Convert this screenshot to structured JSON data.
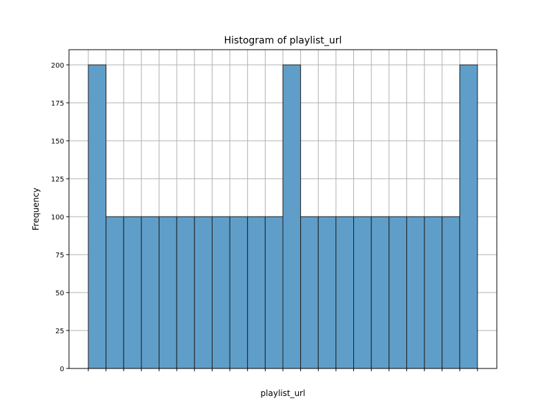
{
  "chart_data": {
    "type": "bar",
    "title": "Histogram of playlist_url",
    "xlabel": "playlist_url",
    "ylabel": "Frequency",
    "ylim": [
      0,
      210
    ],
    "yticks": [
      0,
      25,
      50,
      75,
      100,
      125,
      150,
      175,
      200
    ],
    "grid": true,
    "bar_color": "#5f9ec9",
    "edge_color": "#1f1f1f",
    "grid_color": "#b0b0b0",
    "bins": 22,
    "values": [
      200,
      100,
      100,
      100,
      100,
      100,
      100,
      100,
      100,
      100,
      100,
      200,
      100,
      100,
      100,
      100,
      100,
      100,
      100,
      100,
      100,
      200
    ]
  }
}
